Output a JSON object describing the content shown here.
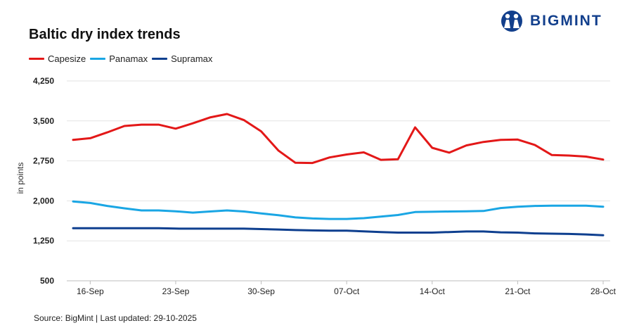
{
  "header": {
    "title": "Baltic dry index trends",
    "brand": "BIGMINT",
    "brand_color": "#123f8c"
  },
  "footer": {
    "source": "Source: BigMint | Last updated: 29-10-2025"
  },
  "chart_data": {
    "type": "line",
    "title": "Baltic dry index trends",
    "xlabel": "",
    "ylabel": "in points",
    "ylim": [
      500,
      4250
    ],
    "yticks": [
      500,
      1250,
      2000,
      2750,
      3500,
      4250
    ],
    "ytick_labels": [
      "500",
      "1,250",
      "2,000",
      "2,750",
      "3,500",
      "4,250"
    ],
    "xticks": [
      "16-Sep",
      "23-Sep",
      "30-Sep",
      "07-Oct",
      "14-Oct",
      "21-Oct",
      "28-Oct"
    ],
    "grid": "horizontal",
    "legend": "top-left",
    "x": [
      "15-Sep",
      "16-Sep",
      "17-Sep",
      "18-Sep",
      "19-Sep",
      "22-Sep",
      "23-Sep",
      "24-Sep",
      "25-Sep",
      "26-Sep",
      "29-Sep",
      "30-Sep",
      "01-Oct",
      "02-Oct",
      "03-Oct",
      "06-Oct",
      "07-Oct",
      "08-Oct",
      "09-Oct",
      "10-Oct",
      "13-Oct",
      "14-Oct",
      "15-Oct",
      "16-Oct",
      "17-Oct",
      "20-Oct",
      "21-Oct",
      "22-Oct",
      "23-Oct",
      "24-Oct",
      "27-Oct",
      "28-Oct"
    ],
    "series": [
      {
        "name": "Capesize",
        "color": "#e31818",
        "values": [
          3145,
          3175,
          3285,
          3405,
          3430,
          3430,
          3355,
          3455,
          3565,
          3630,
          3515,
          3305,
          2945,
          2715,
          2710,
          2815,
          2870,
          2910,
          2770,
          2780,
          3380,
          2995,
          2905,
          3040,
          3105,
          3145,
          3150,
          3050,
          2860,
          2850,
          2830,
          2775
        ]
      },
      {
        "name": "Panamax",
        "color": "#1aa6e4",
        "values": [
          1990,
          1960,
          1905,
          1860,
          1820,
          1820,
          1805,
          1780,
          1800,
          1820,
          1800,
          1765,
          1730,
          1690,
          1670,
          1660,
          1660,
          1675,
          1705,
          1735,
          1790,
          1795,
          1800,
          1805,
          1810,
          1865,
          1890,
          1905,
          1910,
          1910,
          1910,
          1890
        ]
      },
      {
        "name": "Supramax",
        "color": "#0e3f8f",
        "values": [
          1488,
          1488,
          1488,
          1488,
          1488,
          1488,
          1480,
          1478,
          1478,
          1478,
          1478,
          1470,
          1462,
          1452,
          1445,
          1440,
          1440,
          1428,
          1415,
          1405,
          1405,
          1405,
          1415,
          1425,
          1425,
          1410,
          1405,
          1390,
          1385,
          1380,
          1370,
          1355
        ]
      }
    ]
  }
}
